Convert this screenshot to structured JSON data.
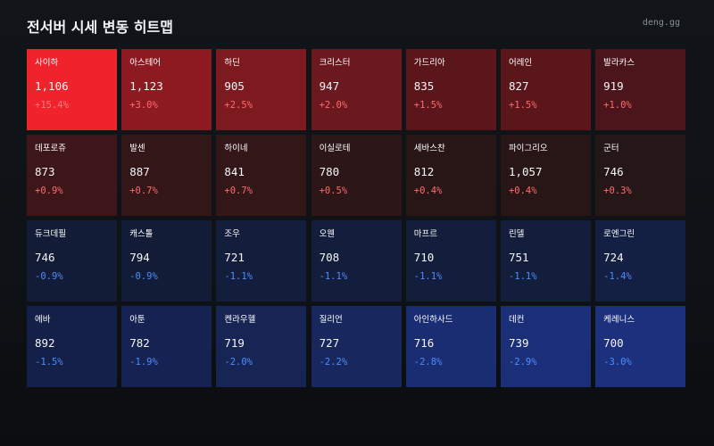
{
  "header": {
    "title": "전서버 시세 변동 히트맵",
    "site": "deng.gg"
  },
  "colors": {
    "up_text": "#ff6b6b",
    "down_text": "#4d8dff"
  },
  "tiles": [
    {
      "name": "사이하",
      "price": "1,106",
      "change": "+15.4%",
      "bg": "#f0232d",
      "fg": "#ff7a80"
    },
    {
      "name": "아스테어",
      "price": "1,123",
      "change": "+3.0%",
      "bg": "#8e1a21",
      "fg": "#ff6b6b"
    },
    {
      "name": "하딘",
      "price": "905",
      "change": "+2.5%",
      "bg": "#7d1a20",
      "fg": "#ff6b6b"
    },
    {
      "name": "크리스터",
      "price": "947",
      "change": "+2.0%",
      "bg": "#6b181e",
      "fg": "#ff6b6b"
    },
    {
      "name": "가드리아",
      "price": "835",
      "change": "+1.5%",
      "bg": "#5b161c",
      "fg": "#ff6b6b"
    },
    {
      "name": "어레인",
      "price": "827",
      "change": "+1.5%",
      "bg": "#5b161c",
      "fg": "#ff6b6b"
    },
    {
      "name": "발라카스",
      "price": "919",
      "change": "+1.0%",
      "bg": "#4b151b",
      "fg": "#ff6b6b"
    },
    {
      "name": "데포로쥬",
      "price": "873",
      "change": "+0.9%",
      "bg": "#3d161a",
      "fg": "#ff6b6b"
    },
    {
      "name": "발센",
      "price": "887",
      "change": "+0.7%",
      "bg": "#321618",
      "fg": "#ff6b6b"
    },
    {
      "name": "하이네",
      "price": "841",
      "change": "+0.7%",
      "bg": "#321618",
      "fg": "#ff6b6b"
    },
    {
      "name": "이실로테",
      "price": "780",
      "change": "+0.5%",
      "bg": "#2c1618",
      "fg": "#ff6b6b"
    },
    {
      "name": "세바스찬",
      "price": "812",
      "change": "+0.4%",
      "bg": "#281617",
      "fg": "#ff6b6b"
    },
    {
      "name": "파이그리오",
      "price": "1,057",
      "change": "+0.4%",
      "bg": "#281617",
      "fg": "#ff6b6b"
    },
    {
      "name": "군터",
      "price": "746",
      "change": "+0.3%",
      "bg": "#251617",
      "fg": "#ff6b6b"
    },
    {
      "name": "듀크데필",
      "price": "746",
      "change": "-0.9%",
      "bg": "#121c36",
      "fg": "#4d8dff"
    },
    {
      "name": "캐스톨",
      "price": "794",
      "change": "-0.9%",
      "bg": "#121c36",
      "fg": "#4d8dff"
    },
    {
      "name": "조우",
      "price": "721",
      "change": "-1.1%",
      "bg": "#131d3c",
      "fg": "#4d8dff"
    },
    {
      "name": "오웬",
      "price": "708",
      "change": "-1.1%",
      "bg": "#131d3c",
      "fg": "#4d8dff"
    },
    {
      "name": "마프르",
      "price": "710",
      "change": "-1.1%",
      "bg": "#131d3c",
      "fg": "#4d8dff"
    },
    {
      "name": "린델",
      "price": "751",
      "change": "-1.1%",
      "bg": "#131d3c",
      "fg": "#4d8dff"
    },
    {
      "name": "로엔그린",
      "price": "724",
      "change": "-1.4%",
      "bg": "#141f44",
      "fg": "#4d8dff"
    },
    {
      "name": "에바",
      "price": "892",
      "change": "-1.5%",
      "bg": "#152048",
      "fg": "#4d8dff"
    },
    {
      "name": "아툰",
      "price": "782",
      "change": "-1.9%",
      "bg": "#162352",
      "fg": "#4d8dff"
    },
    {
      "name": "켄라우헬",
      "price": "719",
      "change": "-2.0%",
      "bg": "#172555",
      "fg": "#4d8dff"
    },
    {
      "name": "질리언",
      "price": "727",
      "change": "-2.2%",
      "bg": "#18285e",
      "fg": "#4d8dff"
    },
    {
      "name": "아인하사드",
      "price": "716",
      "change": "-2.8%",
      "bg": "#1a2c72",
      "fg": "#4d8dff"
    },
    {
      "name": "데컨",
      "price": "739",
      "change": "-2.9%",
      "bg": "#1b2e78",
      "fg": "#4d8dff"
    },
    {
      "name": "케레니스",
      "price": "700",
      "change": "-3.0%",
      "bg": "#1c307e",
      "fg": "#4d8dff"
    }
  ]
}
